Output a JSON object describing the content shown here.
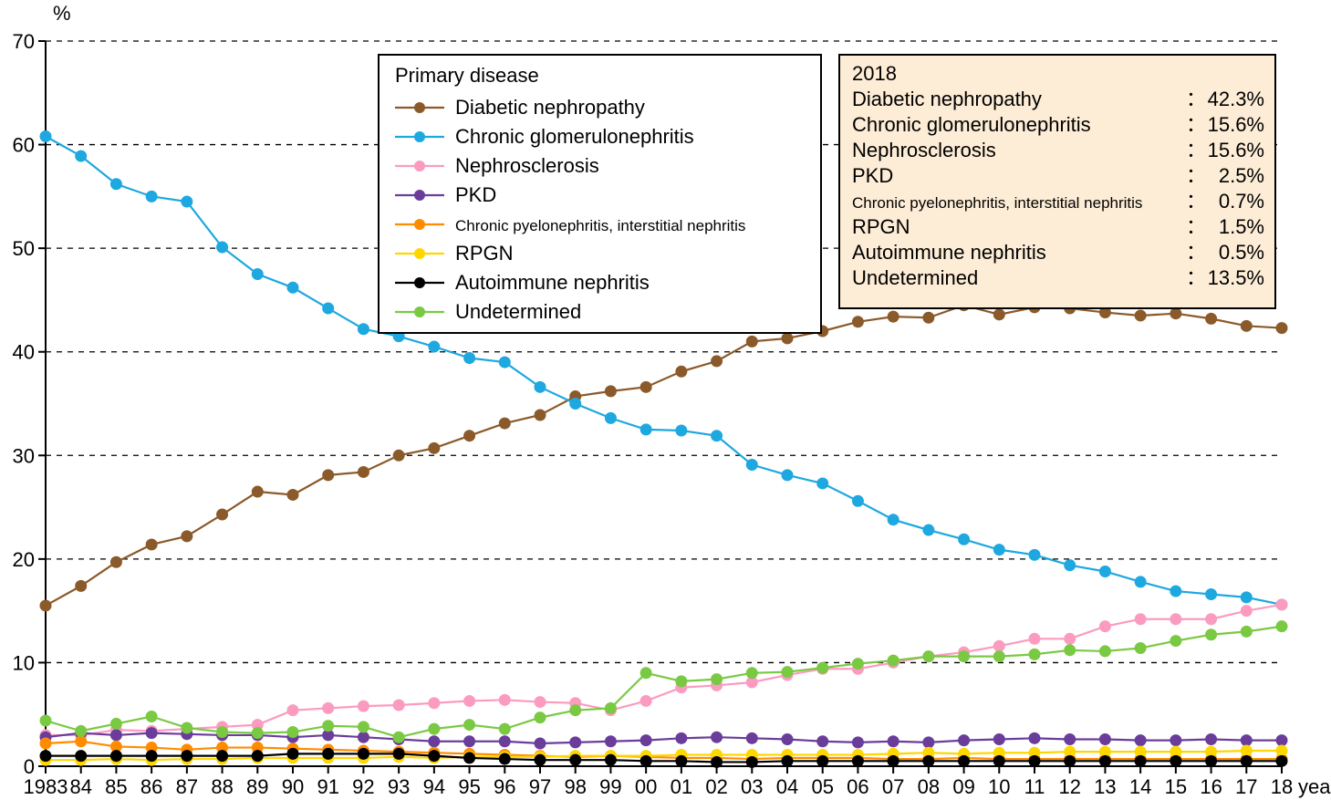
{
  "chart": {
    "type": "line",
    "y_axis_label": "%",
    "x_axis_label": "year",
    "ylim": [
      0,
      70
    ],
    "ytick_step": 10,
    "x_categories": [
      "1983",
      "84",
      "85",
      "86",
      "87",
      "88",
      "89",
      "90",
      "91",
      "92",
      "93",
      "94",
      "95",
      "96",
      "97",
      "98",
      "99",
      "00",
      "01",
      "02",
      "03",
      "04",
      "05",
      "06",
      "07",
      "08",
      "09",
      "10",
      "11",
      "12",
      "13",
      "14",
      "15",
      "16",
      "17",
      "18"
    ],
    "grid_color": "#000000",
    "grid_dash": "6,6",
    "axis_color": "#000000",
    "background_color": "#ffffff",
    "marker_radius": 6,
    "line_width": 2.2,
    "label_fontsize": 22,
    "tick_fontsize": 22
  },
  "series": [
    {
      "name": "Diabetic nephropathy",
      "color": "#8b5a2b",
      "data": [
        15.5,
        17.4,
        19.7,
        21.4,
        22.2,
        24.3,
        26.5,
        26.2,
        28.1,
        28.4,
        30.0,
        30.7,
        31.9,
        33.1,
        33.9,
        35.7,
        36.2,
        36.6,
        38.1,
        39.1,
        41.0,
        41.3,
        42.0,
        42.9,
        43.4,
        43.3,
        44.5,
        43.6,
        44.3,
        44.2,
        43.8,
        43.5,
        43.7,
        43.2,
        42.5,
        42.3
      ]
    },
    {
      "name": "Chronic glomerulonephritis",
      "color": "#1ea8e0",
      "data": [
        60.8,
        58.9,
        56.2,
        55.0,
        54.5,
        50.1,
        47.5,
        46.2,
        44.2,
        42.2,
        41.5,
        40.5,
        39.4,
        39.0,
        36.6,
        35.0,
        33.6,
        32.5,
        32.4,
        31.9,
        29.1,
        28.1,
        27.3,
        25.6,
        23.8,
        22.8,
        21.9,
        20.9,
        20.4,
        19.4,
        18.8,
        17.8,
        16.9,
        16.6,
        16.3,
        15.6
      ]
    },
    {
      "name": "Nephrosclerosis",
      "color": "#fb9bc0",
      "data": [
        3.0,
        3.0,
        3.5,
        3.4,
        3.6,
        3.8,
        4.0,
        5.4,
        5.6,
        5.8,
        5.9,
        6.1,
        6.3,
        6.4,
        6.2,
        6.1,
        5.4,
        6.3,
        7.6,
        7.8,
        8.1,
        8.8,
        9.4,
        9.4,
        10.0,
        10.6,
        11.0,
        11.6,
        12.3,
        12.3,
        13.5,
        14.2,
        14.2,
        14.2,
        15.0,
        15.6
      ]
    },
    {
      "name": "PKD",
      "color": "#6a3d9a",
      "data": [
        2.8,
        3.2,
        3.0,
        3.2,
        3.1,
        3.0,
        3.0,
        2.8,
        3.0,
        2.8,
        2.6,
        2.4,
        2.4,
        2.4,
        2.2,
        2.3,
        2.4,
        2.5,
        2.7,
        2.8,
        2.7,
        2.6,
        2.4,
        2.3,
        2.4,
        2.3,
        2.5,
        2.6,
        2.7,
        2.6,
        2.6,
        2.5,
        2.5,
        2.6,
        2.5,
        2.5
      ]
    },
    {
      "name": "Chronic pyelonephritis, interstitial nephritis",
      "color": "#ff8c00",
      "data": [
        2.2,
        2.4,
        1.9,
        1.8,
        1.6,
        1.8,
        1.8,
        1.7,
        1.6,
        1.5,
        1.4,
        1.3,
        1.2,
        1.1,
        1.0,
        0.9,
        1.0,
        0.9,
        0.8,
        0.8,
        0.7,
        0.8,
        0.8,
        0.8,
        0.7,
        0.7,
        0.8,
        0.7,
        0.7,
        0.7,
        0.7,
        0.7,
        0.7,
        0.7,
        0.7,
        0.7
      ]
    },
    {
      "name": "RPGN",
      "color": "#ffd700",
      "data": [
        0.6,
        0.6,
        0.7,
        0.6,
        0.7,
        0.7,
        0.8,
        0.8,
        0.8,
        0.8,
        0.9,
        0.8,
        0.9,
        0.9,
        0.9,
        1.0,
        1.0,
        1.0,
        1.1,
        1.1,
        1.1,
        1.1,
        1.1,
        1.1,
        1.2,
        1.3,
        1.2,
        1.3,
        1.3,
        1.4,
        1.4,
        1.4,
        1.4,
        1.4,
        1.5,
        1.5
      ]
    },
    {
      "name": "Autoimmune nephritis",
      "color": "#000000",
      "data": [
        1.0,
        1.0,
        1.0,
        1.0,
        1.0,
        1.0,
        1.0,
        1.2,
        1.2,
        1.2,
        1.2,
        1.0,
        0.8,
        0.7,
        0.6,
        0.6,
        0.6,
        0.5,
        0.5,
        0.4,
        0.4,
        0.5,
        0.5,
        0.5,
        0.5,
        0.5,
        0.5,
        0.5,
        0.5,
        0.5,
        0.5,
        0.5,
        0.5,
        0.5,
        0.5,
        0.5
      ]
    },
    {
      "name": "Undetermined",
      "color": "#7ac943",
      "data": [
        4.4,
        3.4,
        4.1,
        4.8,
        3.7,
        3.3,
        3.2,
        3.3,
        3.9,
        3.8,
        2.8,
        3.6,
        4.0,
        3.6,
        4.7,
        5.4,
        5.6,
        9.0,
        8.2,
        8.4,
        9.0,
        9.1,
        9.5,
        9.9,
        10.2,
        10.6,
        10.6,
        10.6,
        10.8,
        11.2,
        11.1,
        11.4,
        12.1,
        12.7,
        13.0,
        13.5
      ]
    }
  ],
  "legend": {
    "title": "Primary disease",
    "border_color": "#000000",
    "background_color": "#ffffff",
    "fontsize": 22,
    "small_fontsize": 17
  },
  "info_box": {
    "title": "2018",
    "background_color": "#fdecd6",
    "border_color": "#000000",
    "items": [
      {
        "label": "Diabetic nephropathy",
        "value": "42.3%"
      },
      {
        "label": "Chronic glomerulonephritis",
        "value": "15.6%"
      },
      {
        "label": "Nephrosclerosis",
        "value": "15.6%"
      },
      {
        "label": "PKD",
        "value": "2.5%"
      },
      {
        "label": "Chronic pyelonephritis, interstitial nephritis",
        "value": "0.7%",
        "small": true
      },
      {
        "label": "RPGN",
        "value": "1.5%"
      },
      {
        "label": "Autoimmune nephritis",
        "value": "0.5%"
      },
      {
        "label": "Undetermined",
        "value": "13.5%"
      }
    ]
  }
}
